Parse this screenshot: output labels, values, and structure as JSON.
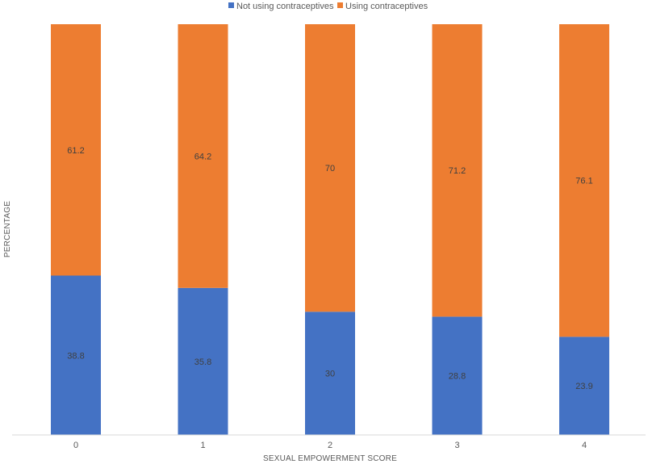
{
  "chart_data": {
    "type": "bar",
    "stacked": true,
    "percent_stacked": true,
    "xlabel": "SEXUAL EMPOWERMENT SCORE",
    "ylabel": "PERCENTAGE",
    "categories": [
      "0",
      "1",
      "2",
      "3",
      "4"
    ],
    "ylim": [
      0,
      100
    ],
    "grid": false,
    "legend_position": "top",
    "series": [
      {
        "name": "Not using contraceptives",
        "color": "#4472C4",
        "values": [
          38.8,
          35.8,
          30,
          28.8,
          23.9
        ],
        "labels": [
          "38.8",
          "35.8",
          "30",
          "28.8",
          "23.9"
        ]
      },
      {
        "name": "Using contraceptives",
        "color": "#ED7D31",
        "values": [
          61.2,
          64.2,
          70,
          71.2,
          76.1
        ],
        "labels": [
          "61.2",
          "64.2",
          "70",
          "71.2",
          "76.1"
        ]
      }
    ]
  }
}
